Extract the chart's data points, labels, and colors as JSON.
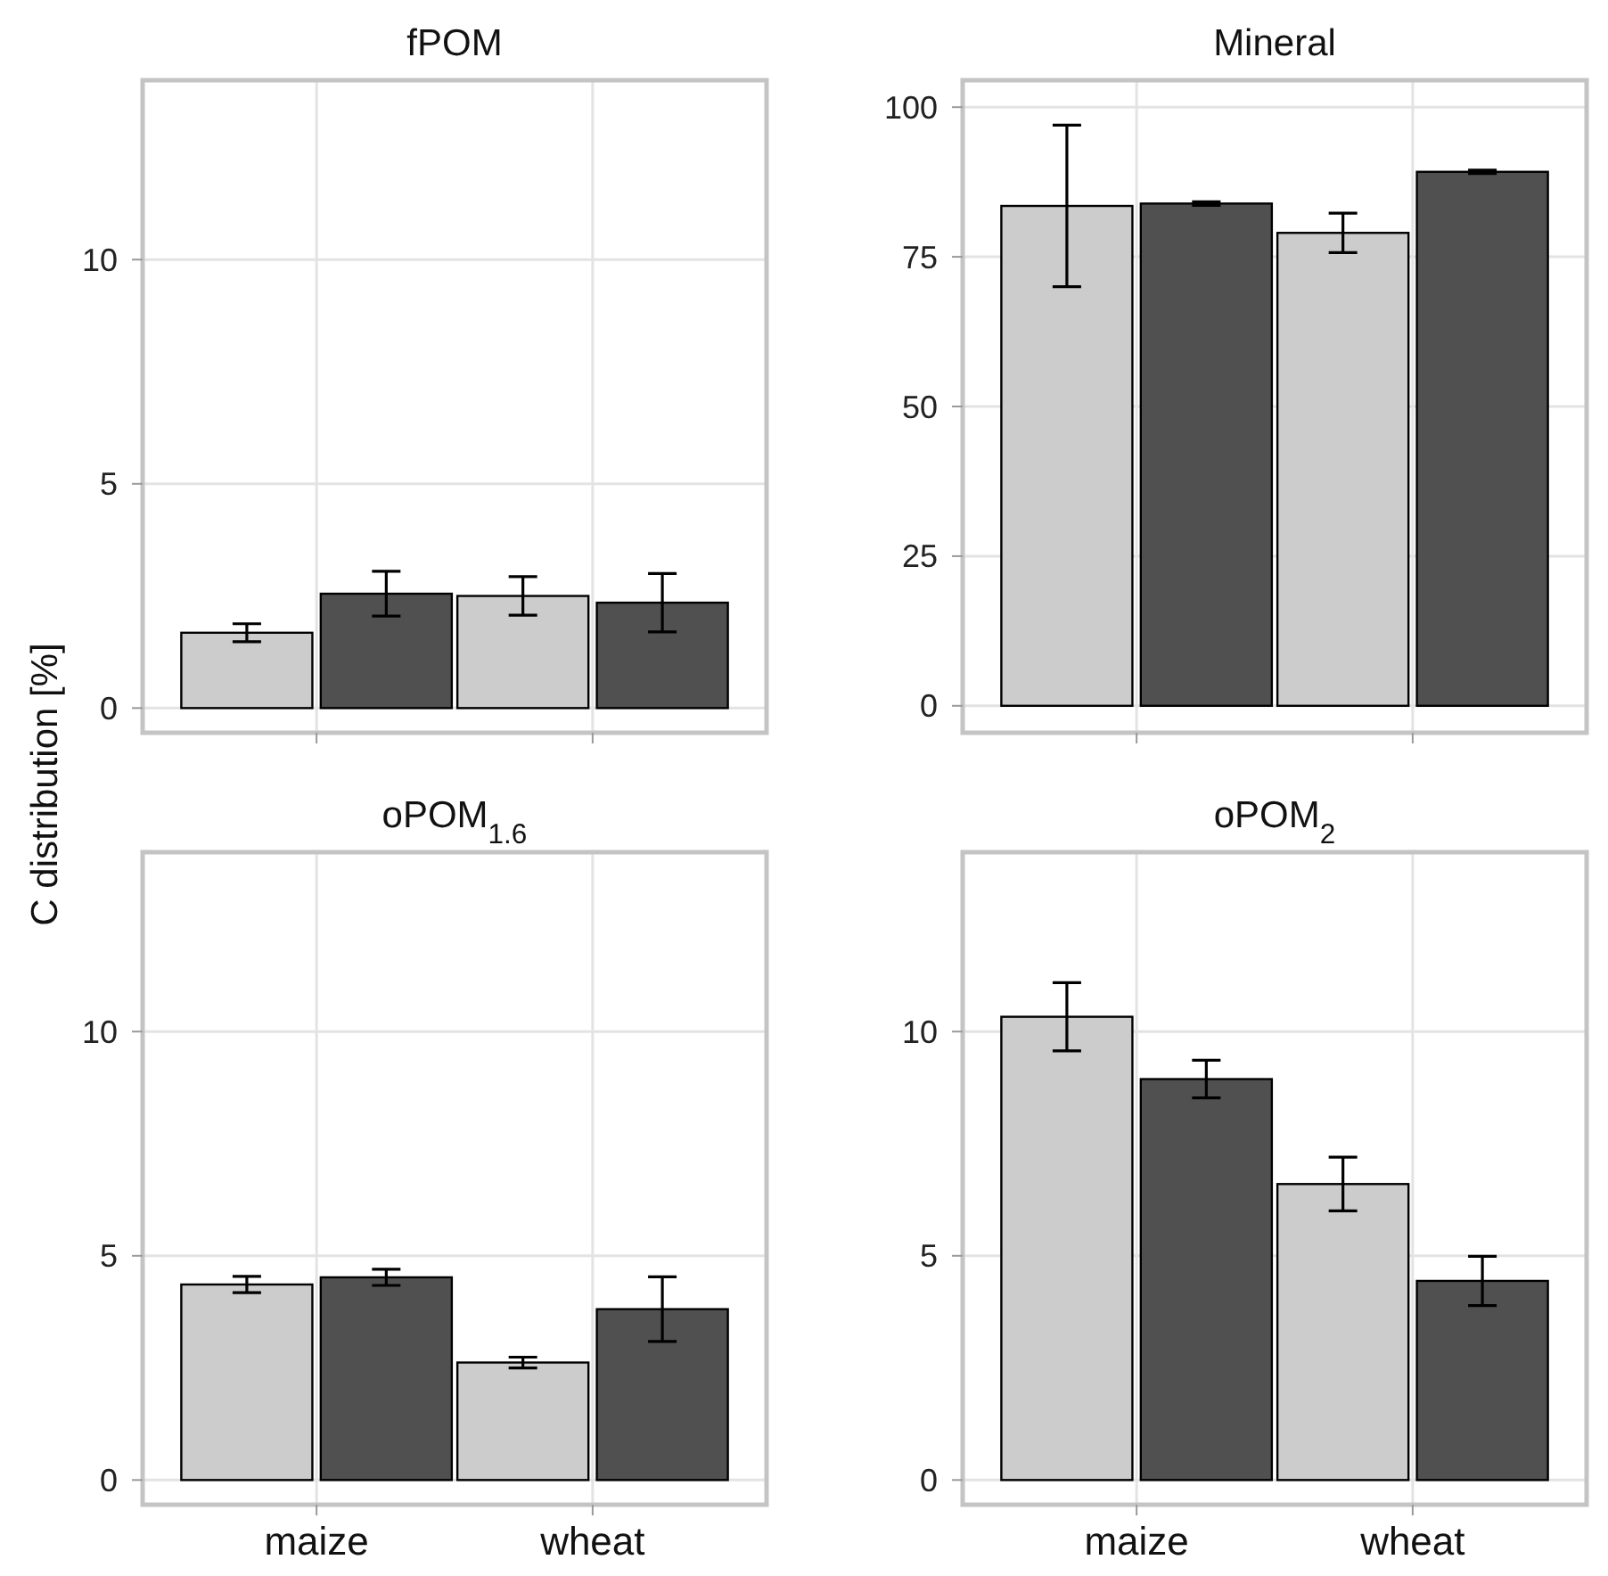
{
  "chart_data": [
    {
      "type": "bar",
      "title": "fPOM",
      "ylabel": "C distribution [%]",
      "categories": [
        null,
        null
      ],
      "ylim": [
        -0.55,
        14
      ],
      "yticks": [
        0,
        5,
        10
      ],
      "grid": true,
      "tick_labels": "y",
      "series": [
        {
          "color": "#cccccc",
          "values": [
            1.68,
            2.5
          ],
          "errors": [
            0.2,
            0.43
          ]
        },
        {
          "color": "#505050",
          "values": [
            2.55,
            2.35
          ],
          "errors": [
            0.5,
            0.65
          ]
        }
      ]
    },
    {
      "type": "bar",
      "title": "Mineral",
      "categories": [
        null,
        null
      ],
      "ylim": [
        -4.5,
        104.5
      ],
      "yticks": [
        0,
        25,
        50,
        75,
        100
      ],
      "grid": true,
      "tick_labels": "y",
      "series": [
        {
          "color": "#cccccc",
          "values": [
            83.5,
            79
          ],
          "errors": [
            13.5,
            3.3
          ]
        },
        {
          "color": "#505050",
          "values": [
            83.9,
            89.2
          ],
          "errors": [
            0.3,
            0.3
          ]
        }
      ]
    },
    {
      "type": "bar",
      "title": "oPOM$_{1.6}$",
      "categories": [
        "maize",
        "wheat"
      ],
      "ylim": [
        -0.55,
        14
      ],
      "yticks": [
        0,
        5,
        10
      ],
      "grid": true,
      "series": [
        {
          "color": "#cccccc",
          "values": [
            4.36,
            2.62
          ],
          "errors": [
            0.18,
            0.12
          ]
        },
        {
          "color": "#505050",
          "values": [
            4.52,
            3.81
          ],
          "errors": [
            0.18,
            0.72
          ]
        }
      ]
    },
    {
      "type": "bar",
      "title": "oPOM$_{2}$",
      "categories": [
        "maize",
        "wheat"
      ],
      "ylim": [
        -0.55,
        14
      ],
      "yticks": [
        0,
        5,
        10
      ],
      "grid": true,
      "series": [
        {
          "color": "#cccccc",
          "values": [
            10.33,
            6.6
          ],
          "errors": [
            0.76,
            0.6
          ]
        },
        {
          "color": "#505050",
          "values": [
            8.94,
            4.44
          ],
          "errors": [
            0.42,
            0.55
          ]
        }
      ]
    }
  ]
}
